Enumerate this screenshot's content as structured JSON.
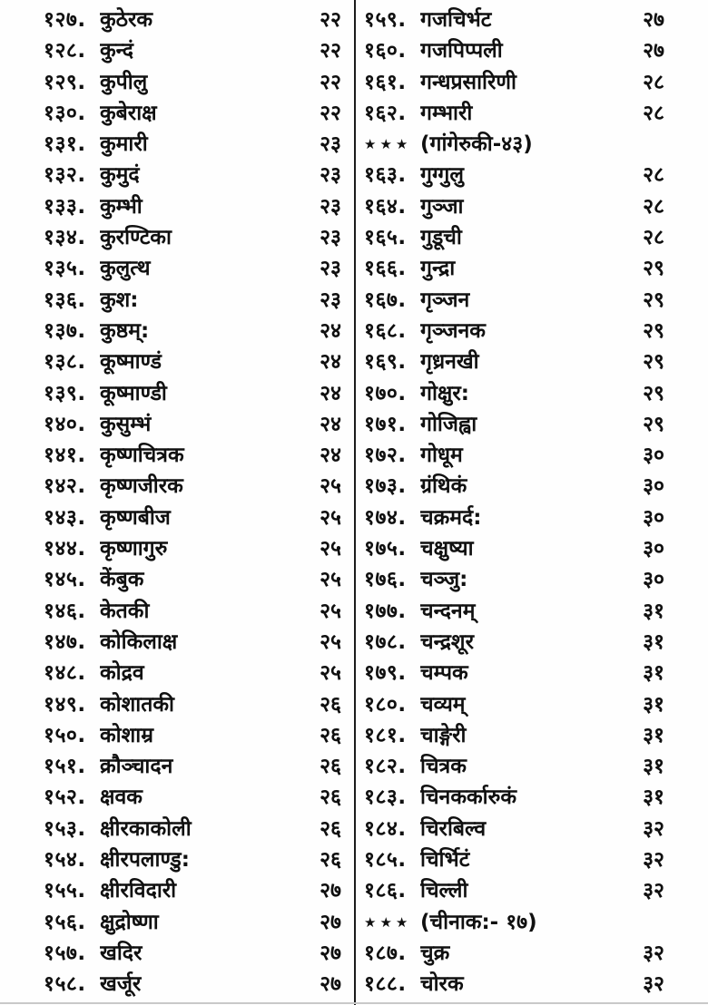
{
  "document": {
    "kind": "book-index-page",
    "script": "devanagari",
    "star_marker": "★★★",
    "colors": {
      "background": "#fefefe",
      "text": "#101010",
      "column_divider": "#1a1a1a",
      "bottom_edge": "#c9c9c9"
    },
    "columns": [
      {
        "side": "left",
        "entries": [
          {
            "num": "१२७.",
            "name": "कुठेरक",
            "page": "२२"
          },
          {
            "num": "१२८.",
            "name": "कुन्दं",
            "page": "२२"
          },
          {
            "num": "१२९.",
            "name": "कुपीलु",
            "page": "२२"
          },
          {
            "num": "१३०.",
            "name": "कुबेराक्ष",
            "page": "२२"
          },
          {
            "num": "१३१.",
            "name": "कुमारी",
            "page": "२३"
          },
          {
            "num": "१३२.",
            "name": "कुमुदं",
            "page": "२३"
          },
          {
            "num": "१३३.",
            "name": "कुम्भी",
            "page": "२३"
          },
          {
            "num": "१३४.",
            "name": "कुरण्टिका",
            "page": "२३"
          },
          {
            "num": "१३५.",
            "name": "कुलुत्थ",
            "page": "२३"
          },
          {
            "num": "१३६.",
            "name": "कुश:",
            "page": "२३"
          },
          {
            "num": "१३७.",
            "name": "कुष्ठम्:",
            "page": "२४"
          },
          {
            "num": "१३८.",
            "name": "कूष्माण्डं",
            "page": "२४"
          },
          {
            "num": "१३९.",
            "name": "कूष्माण्डी",
            "page": "२४"
          },
          {
            "num": "१४०.",
            "name": "कुसुम्भं",
            "page": "२४"
          },
          {
            "num": "१४१.",
            "name": "कृष्णचित्रक",
            "page": "२४"
          },
          {
            "num": "१४२.",
            "name": "कृष्णजीरक",
            "page": "२५"
          },
          {
            "num": "१४३.",
            "name": "कृष्णबीज",
            "page": "२५"
          },
          {
            "num": "१४४.",
            "name": "कृष्णागुरु",
            "page": "२५"
          },
          {
            "num": "१४५.",
            "name": "केंबुक",
            "page": "२५"
          },
          {
            "num": "१४६.",
            "name": "केतकी",
            "page": "२५"
          },
          {
            "num": "१४७.",
            "name": "कोकिलाक्ष",
            "page": "२५"
          },
          {
            "num": "१४८.",
            "name": "कोद्रव",
            "page": "२५"
          },
          {
            "num": "१४९.",
            "name": "कोशातकी",
            "page": "२६"
          },
          {
            "num": "१५०.",
            "name": "कोशाम्र",
            "page": "२६"
          },
          {
            "num": "१५१.",
            "name": "क्रौञ्चादन",
            "page": "२६"
          },
          {
            "num": "१५२.",
            "name": "क्षवक",
            "page": "२६"
          },
          {
            "num": "१५३.",
            "name": "क्षीरकाकोली",
            "page": "२६"
          },
          {
            "num": "१५४.",
            "name": "क्षीरपलाण्डु:",
            "page": "२६"
          },
          {
            "num": "१५५.",
            "name": "क्षीरविदारी",
            "page": "२७"
          },
          {
            "num": "१५६.",
            "name": "क्षुद्रोष्णा",
            "page": "२७"
          },
          {
            "num": "१५७.",
            "name": "खदिर",
            "page": "२७"
          },
          {
            "num": "१५८.",
            "name": "खर्जूर",
            "page": "२७"
          }
        ]
      },
      {
        "side": "right",
        "entries": [
          {
            "num": "१५९.",
            "name": "गजचिर्भट",
            "page": "२७"
          },
          {
            "num": "१६०.",
            "name": "गजपिप्पली",
            "page": "२७"
          },
          {
            "num": "१६१.",
            "name": "गन्धप्रसारिणी",
            "page": "२८"
          },
          {
            "num": "१६२.",
            "name": "गम्भारी",
            "page": "२८"
          },
          {
            "star": true,
            "name": "(गांगेरुकी-४३)",
            "page": ""
          },
          {
            "num": "१६३.",
            "name": "गुग्गुलु",
            "page": "२८"
          },
          {
            "num": "१६४.",
            "name": "गुञ्जा",
            "page": "२८"
          },
          {
            "num": "१६५.",
            "name": "गुडूची",
            "page": "२८"
          },
          {
            "num": "१६६.",
            "name": "गुन्द्रा",
            "page": "२९"
          },
          {
            "num": "१६७.",
            "name": "गृञ्जन",
            "page": "२९"
          },
          {
            "num": "१६८.",
            "name": "गृञ्जनक",
            "page": "२९"
          },
          {
            "num": "१६९.",
            "name": "गृध्रनखी",
            "page": "२९"
          },
          {
            "num": "१७०.",
            "name": "गोक्षुर:",
            "page": "२९"
          },
          {
            "num": "१७१.",
            "name": "गोजिह्वा",
            "page": "२९"
          },
          {
            "num": "१७२.",
            "name": "गोधूम",
            "page": "३०"
          },
          {
            "num": "१७३.",
            "name": "ग्रंथिकं",
            "page": "३०"
          },
          {
            "num": "१७४.",
            "name": "चक्रमर्द:",
            "page": "३०"
          },
          {
            "num": "१७५.",
            "name": "चक्षुष्या",
            "page": "३०"
          },
          {
            "num": "१७६.",
            "name": "चञ्जु:",
            "page": "३०"
          },
          {
            "num": "१७७.",
            "name": "चन्दनम्",
            "page": "३१"
          },
          {
            "num": "१७८.",
            "name": "चन्द्रशूर",
            "page": "३१"
          },
          {
            "num": "१७९.",
            "name": "चम्पक",
            "page": "३१"
          },
          {
            "num": "१८०.",
            "name": "चव्यम्",
            "page": "३१"
          },
          {
            "num": "१८१.",
            "name": "चाङ्गेरी",
            "page": "३१"
          },
          {
            "num": "१८२.",
            "name": "चित्रक",
            "page": "३१"
          },
          {
            "num": "१८३.",
            "name": "चिनकर्कारुकं",
            "page": "३१"
          },
          {
            "num": "१८४.",
            "name": "चिरबिल्व",
            "page": "३२"
          },
          {
            "num": "१८५.",
            "name": "चिर्भिटं",
            "page": "३२"
          },
          {
            "num": "१८६.",
            "name": "चिल्ली",
            "page": "३२"
          },
          {
            "star": true,
            "name": "(चीनाक:- १७)",
            "page": ""
          },
          {
            "num": "१८७.",
            "name": "चुक्र",
            "page": "३२"
          },
          {
            "num": "१८८.",
            "name": "चोरक",
            "page": "३२"
          }
        ]
      }
    ]
  }
}
